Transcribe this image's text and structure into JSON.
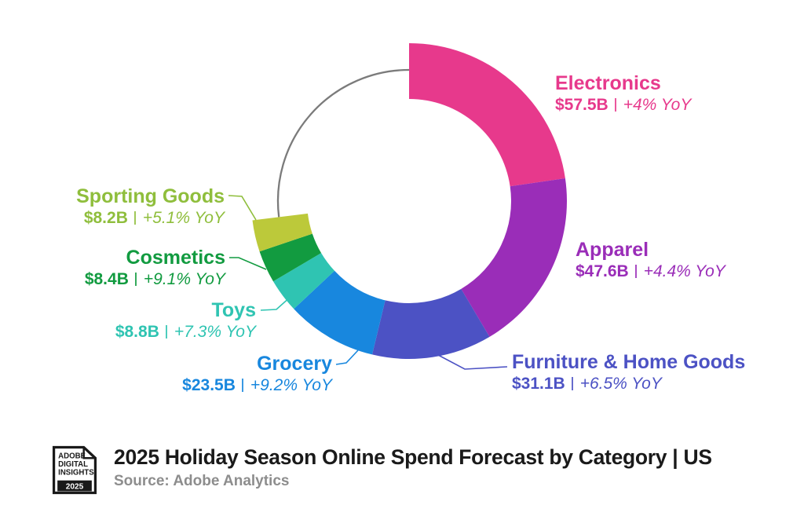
{
  "chart_data": {
    "type": "donut",
    "title": "2025 Holiday Season Online Spend Forecast by Category | US",
    "source": "Source: Adobe Analytics",
    "segments": [
      {
        "label": "Electronics",
        "value_billions": 57.5,
        "value_label": "$57.5B",
        "yoy": "+4% YoY",
        "color": "#E7398C",
        "label_color": "#E7398C"
      },
      {
        "label": "Apparel",
        "value_billions": 47.6,
        "value_label": "$47.6B",
        "yoy": "+4.4% YoY",
        "color": "#9A2DB8",
        "label_color": "#9A2DB8"
      },
      {
        "label": "Furniture & Home Goods",
        "value_billions": 31.1,
        "value_label": "$31.1B",
        "yoy": "+6.5% YoY",
        "color": "#4C52C4",
        "label_color": "#4C52C4"
      },
      {
        "label": "Grocery",
        "value_billions": 23.5,
        "value_label": "$23.5B",
        "yoy": "+9.2% YoY",
        "color": "#1887DE",
        "label_color": "#1887DE"
      },
      {
        "label": "Toys",
        "value_billions": 8.8,
        "value_label": "$8.8B",
        "yoy": "+7.3% YoY",
        "color": "#2FC4B2",
        "label_color": "#2FC4B2"
      },
      {
        "label": "Cosmetics",
        "value_billions": 8.4,
        "value_label": "$8.4B",
        "yoy": "+9.1% YoY",
        "color": "#129B40",
        "label_color": "#129B40"
      },
      {
        "label": "Sporting Goods",
        "value_billions": 8.2,
        "value_label": "$8.2B",
        "yoy": "+5.1% YoY",
        "color": "#BCC93A",
        "label_color": "#8FBE3C"
      }
    ],
    "remainder_arc": {
      "style": "thin gray arc for unlabeled remainder of ring",
      "color": "#7B7B7B"
    },
    "legend_position": "callout-labels-around-ring",
    "grid": false
  },
  "logo": {
    "lines": [
      "ADOBE",
      "DIGITAL",
      "INSIGHTS"
    ],
    "year": "2025"
  }
}
